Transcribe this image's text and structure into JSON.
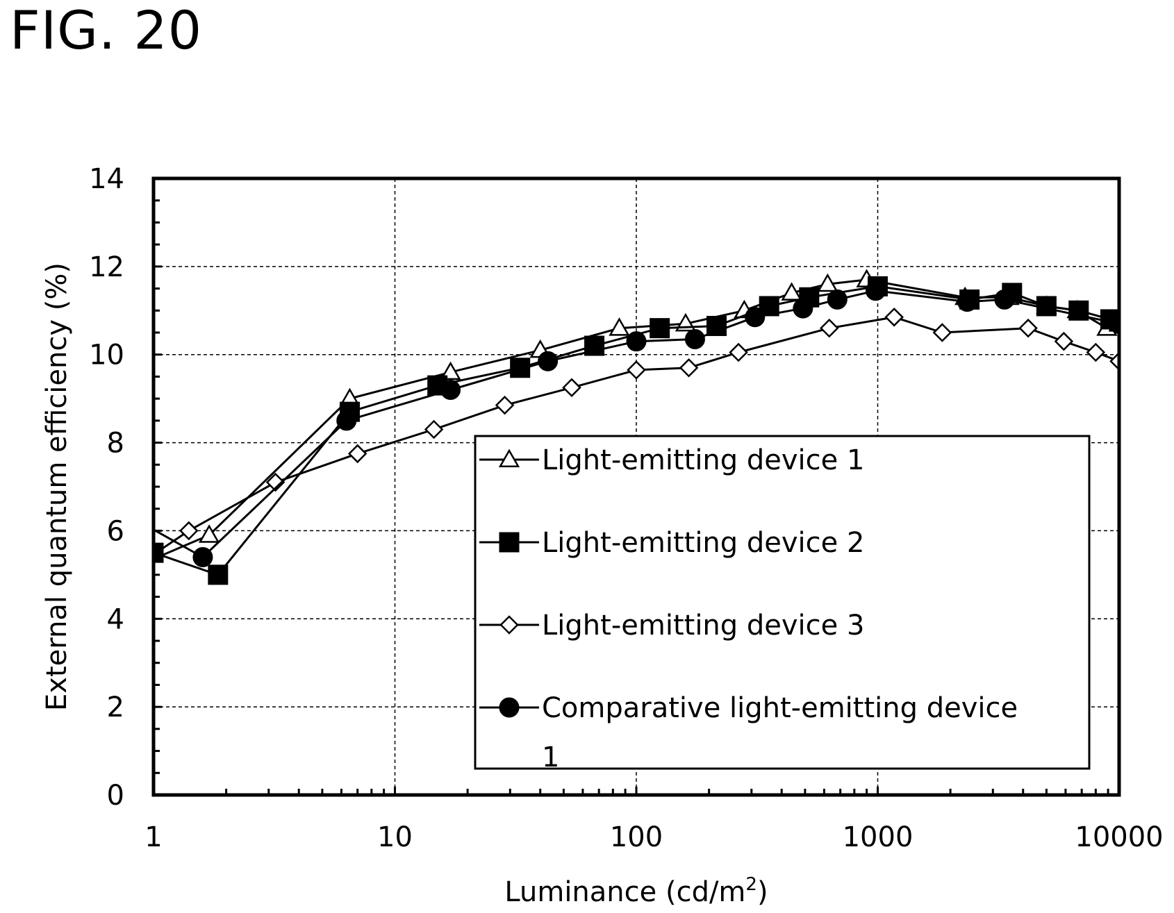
{
  "figure_label": "FIG. 20",
  "chart_data": {
    "type": "line",
    "title": "",
    "xlabel": "Luminance (cd/m",
    "xlabel_sup": "2",
    "xlabel_suffix": ")",
    "ylabel": "External quantum efficiency (%)",
    "xscale": "log",
    "xlim": [
      1,
      10000
    ],
    "ylim": [
      0,
      14
    ],
    "x_ticks": [
      "1",
      "10",
      "100",
      "1000",
      "10000"
    ],
    "y_ticks": [
      "0",
      "2",
      "4",
      "6",
      "8",
      "10",
      "12",
      "14"
    ],
    "grid": true,
    "legend_position": "lower-right",
    "series": [
      {
        "name": "Light-emitting device 1",
        "marker": "triangle-open",
        "x": [
          0.7,
          1.7,
          6.5,
          17,
          40,
          85,
          160,
          280,
          440,
          620,
          900,
          2300,
          3500,
          5000,
          6700,
          8900,
          10000
        ],
        "y": [
          5.0,
          5.9,
          9.0,
          9.6,
          10.1,
          10.6,
          10.7,
          11.0,
          11.4,
          11.6,
          11.7,
          11.3,
          11.3,
          11.1,
          11.0,
          10.6,
          10.7
        ]
      },
      {
        "name": "Light-emitting device 2",
        "marker": "square-filled",
        "x": [
          1.0,
          1.85,
          6.5,
          15,
          33,
          67,
          125,
          215,
          355,
          520,
          1000,
          2400,
          3600,
          5000,
          6800,
          9200,
          10000
        ],
        "y": [
          5.5,
          5.0,
          8.7,
          9.3,
          9.7,
          10.2,
          10.6,
          10.65,
          11.1,
          11.3,
          11.55,
          11.25,
          11.4,
          11.1,
          11.0,
          10.8,
          10.75
        ]
      },
      {
        "name": "Light-emitting device 3",
        "marker": "diamond-open",
        "x": [
          0.75,
          1.4,
          3.2,
          7,
          14.5,
          28.5,
          54,
          100,
          165,
          265,
          630,
          1170,
          1850,
          4200,
          5900,
          8000,
          10000
        ],
        "y": [
          5.0,
          6.0,
          7.1,
          7.75,
          8.3,
          8.85,
          9.25,
          9.65,
          9.7,
          10.05,
          10.6,
          10.85,
          10.5,
          10.6,
          10.3,
          10.05,
          9.85
        ]
      },
      {
        "name": "Comparative light-emitting device",
        "name_line2": "1",
        "marker": "circle-filled",
        "x": [
          0.7,
          1.6,
          6.3,
          17,
          43,
          100,
          175,
          310,
          490,
          680,
          980,
          2350,
          3350,
          10000
        ],
        "y": [
          6.5,
          5.4,
          8.5,
          9.2,
          9.85,
          10.3,
          10.35,
          10.85,
          11.05,
          11.25,
          11.45,
          11.2,
          11.25,
          10.7
        ]
      }
    ]
  }
}
